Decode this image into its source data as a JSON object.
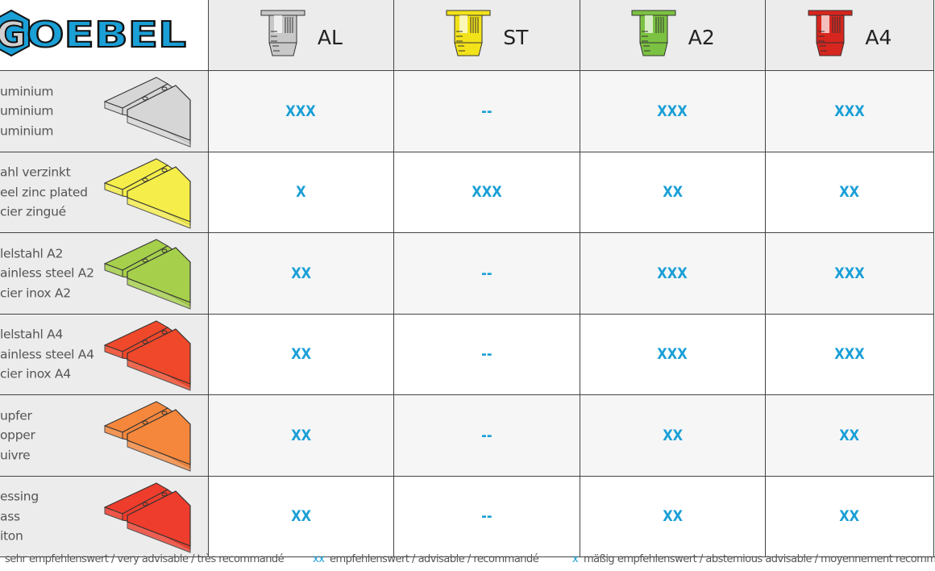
{
  "logo": {
    "text": "GOEBEL",
    "color": "#1a9fd6"
  },
  "columns": [
    {
      "label": "AL",
      "color": "#c8c8c8",
      "icon": "rivet-nut-gray-icon"
    },
    {
      "label": "ST",
      "color": "#f2e21a",
      "icon": "rivet-nut-yellow-icon"
    },
    {
      "label": "A2",
      "color": "#7cc242",
      "icon": "rivet-nut-green-icon"
    },
    {
      "label": "A4",
      "color": "#d7261e",
      "icon": "rivet-nut-red-icon"
    }
  ],
  "rows": [
    {
      "lines": [
        "uminium",
        "uminium",
        "uminium"
      ],
      "plate_color": "#d6d6d6",
      "values": [
        "XXX",
        "--",
        "XXX",
        "XXX"
      ]
    },
    {
      "lines": [
        "ahl verzinkt",
        "eel zinc plated",
        "cier zingué"
      ],
      "plate_color": "#f5ee4a",
      "values": [
        "X",
        "XXX",
        "XX",
        "XX"
      ]
    },
    {
      "lines": [
        "lelstahl A2",
        "ainless steel A2",
        "cier inox A2"
      ],
      "plate_color": "#a6d04c",
      "values": [
        "XX",
        "--",
        "XXX",
        "XXX"
      ]
    },
    {
      "lines": [
        "lelstahl A4",
        "ainless steel A4",
        "cier inox A4"
      ],
      "plate_color": "#f0482a",
      "values": [
        "XX",
        "--",
        "XXX",
        "XXX"
      ]
    },
    {
      "lines": [
        "upfer",
        "opper",
        "uivre"
      ],
      "plate_color": "#f5873c",
      "values": [
        "XX",
        "--",
        "XX",
        "XX"
      ]
    },
    {
      "lines": [
        "essing",
        "ass",
        "iton"
      ],
      "plate_color": "#ee3d2c",
      "values": [
        "XX",
        "--",
        "XX",
        "XX"
      ]
    }
  ],
  "legend": {
    "item1": "sehr empfehlenswert / very advisable / très recommandé",
    "key2": "xx",
    "item2": "empfehlenswert / advisable /  recommandé",
    "key3": "x",
    "item3": "mäßig empfehlenswert / abstemious advisable / moyennement recommand"
  }
}
